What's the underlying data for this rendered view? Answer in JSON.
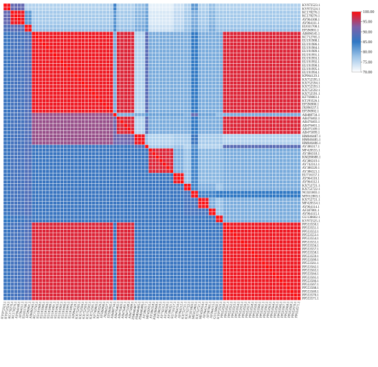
{
  "chart_data": {
    "type": "heatmap",
    "title": "",
    "xlabel": "",
    "ylabel": "",
    "n": 84,
    "labels": [
      "KY972523.1",
      "KY972524.1",
      "KC178276.1",
      "KC178276.1",
      "AY964108.1",
      "AY964111.1",
      "EU031700.1",
      "EF596901.1",
      "AB696545.1",
      "KC712765.1",
      "EU191988.1",
      "EU191986.1",
      "EU191984.1",
      "EU191989.1",
      "EU191991.1",
      "EU191993.1",
      "EU191992.1",
      "EU191990.1",
      "EU191995.1",
      "EU191994.1",
      "KP964129.1",
      "KX752595.1",
      "KX752594.1",
      "KX752593.1",
      "KX752592.1",
      "KX752591.1",
      "KF769803.1",
      "KT293526.1",
      "EF596900.1",
      "JX096537.1",
      "EF596902.1",
      "AB488734.1",
      "AB476402.1",
      "AB476403.1",
      "AB476401.1",
      "AB475109.1",
      "AB475099.1",
      "HM046487.1",
      "HM046485.1",
      "HM046486.1",
      "AY386317.1",
      "MF420555.1",
      "AY386318.1",
      "KM280688.1",
      "AY386319.1",
      "AY742312.1",
      "AY386320.1",
      "AY386321.1",
      "EU716157.1",
      "AY964110.1",
      "AY964112.1",
      "KX752721.1",
      "KX752722.1",
      "NC021803.1",
      "MT012803.1",
      "KX752721.1",
      "MF420554.1",
      "AY964114.1",
      "AF387801.1",
      "AY964115.1",
      "GU138602.1",
      "KY972525.1",
      "PP553550.1",
      "PP553551.1",
      "PP553552.1",
      "PP553553.1",
      "PP553554.1",
      "PP553555.1",
      "PP553556.1",
      "PP553557.1",
      "PP553558.1",
      "PP553559.1",
      "PP553560.1",
      "PP553561.1",
      "PP553562.1",
      "PP553563.1",
      "PP553564.1",
      "PP553565.1",
      "PP553566.1",
      "PP553567.1",
      "PP553568.1",
      "PP553569.1",
      "PP553570.1",
      "PP553571.1"
    ],
    "value_range": [
      70,
      100
    ],
    "colorbar_ticks": [
      "100.00",
      "95.00",
      "90.00",
      "85.00",
      "80.00",
      "75.00",
      "70.00"
    ],
    "colors": [
      "#ffffff",
      "#9ec5e8",
      "#2f78c4",
      "#7d60a8",
      "#ff0d0d"
    ],
    "diagonal_value": 100,
    "groups": [
      {
        "start": 0,
        "end": 1
      },
      {
        "start": 2,
        "end": 5
      },
      {
        "start": 6,
        "end": 7
      },
      {
        "start": 8,
        "end": 30
      },
      {
        "start": 31,
        "end": 31
      },
      {
        "start": 32,
        "end": 36
      },
      {
        "start": 37,
        "end": 39
      },
      {
        "start": 40,
        "end": 40
      },
      {
        "start": 41,
        "end": 47
      },
      {
        "start": 48,
        "end": 50
      },
      {
        "start": 51,
        "end": 52
      },
      {
        "start": 53,
        "end": 54
      },
      {
        "start": 55,
        "end": 57
      },
      {
        "start": 58,
        "end": 59
      },
      {
        "start": 60,
        "end": 61
      },
      {
        "start": 62,
        "end": 83
      }
    ],
    "block_values": [
      [
        99,
        90,
        76,
        76,
        84,
        76,
        78,
        80,
        72,
        74,
        76,
        82,
        76,
        78,
        76,
        76
      ],
      [
        90,
        99,
        82,
        77,
        82,
        77,
        79,
        81,
        73,
        75,
        77,
        80,
        77,
        79,
        77,
        77
      ],
      [
        88,
        89,
        99,
        78,
        83,
        78,
        80,
        82,
        74,
        76,
        78,
        81,
        78,
        80,
        78,
        78
      ],
      [
        86,
        87,
        88,
        99,
        80,
        98,
        76,
        89,
        80,
        80,
        80,
        85,
        80,
        80,
        80,
        98
      ],
      [
        86,
        87,
        88,
        94,
        99,
        80,
        80,
        83,
        81,
        81,
        80,
        90,
        81,
        81,
        79,
        80
      ],
      [
        86,
        87,
        88,
        94,
        91,
        98,
        76,
        89,
        80,
        80,
        80,
        85,
        80,
        80,
        80,
        98
      ],
      [
        86,
        87,
        88,
        94,
        91,
        91,
        99,
        78,
        76,
        77,
        77,
        86,
        77,
        77,
        77,
        76
      ],
      [
        86,
        87,
        88,
        86,
        86,
        86,
        88,
        99,
        77,
        78,
        76,
        82,
        76,
        76,
        76,
        89
      ],
      [
        86,
        87,
        88,
        86,
        86,
        86,
        86,
        86,
        98,
        80,
        78,
        84,
        79,
        79,
        79,
        80
      ],
      [
        86,
        87,
        88,
        86,
        86,
        86,
        86,
        86,
        86,
        99,
        78,
        84,
        79,
        79,
        79,
        80
      ],
      [
        86,
        87,
        88,
        86,
        86,
        86,
        86,
        86,
        86,
        86,
        99,
        84,
        80,
        80,
        78,
        80
      ],
      [
        86,
        87,
        88,
        86,
        86,
        86,
        86,
        86,
        86,
        86,
        87,
        99,
        84,
        84,
        85,
        85
      ],
      [
        86,
        87,
        88,
        86,
        86,
        86,
        86,
        86,
        86,
        86,
        87,
        87,
        99,
        80,
        78,
        80
      ],
      [
        86,
        87,
        88,
        86,
        86,
        86,
        86,
        86,
        86,
        86,
        87,
        87,
        87,
        99,
        78,
        80
      ],
      [
        85,
        86,
        87,
        86,
        86,
        86,
        86,
        86,
        86,
        86,
        86,
        86,
        86,
        86,
        99,
        80
      ],
      [
        86,
        87,
        88,
        98,
        86,
        98,
        86,
        86,
        86,
        86,
        86,
        86,
        86,
        86,
        86,
        99
      ]
    ]
  }
}
